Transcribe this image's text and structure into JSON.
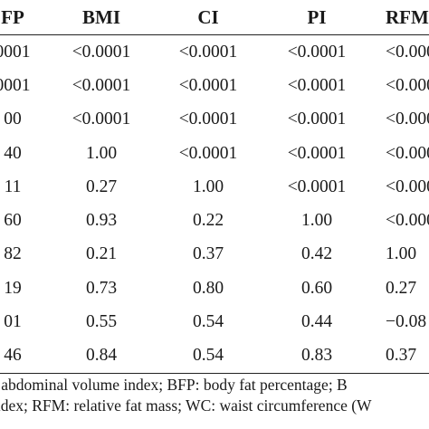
{
  "table": {
    "headers": [
      "FP",
      "BMI",
      "CI",
      "PI",
      "RFM"
    ],
    "rows": [
      [
        "0001",
        "<0.0001",
        "<0.0001",
        "<0.0001",
        "<0.000"
      ],
      [
        "0001",
        "<0.0001",
        "<0.0001",
        "<0.0001",
        "<0.000"
      ],
      "__spacer__"
    ]
  },
  "rows": [
    [
      "0001",
      "<0.0001",
      "<0.0001",
      "<0.0001",
      "<0.000"
    ],
    [
      "0001",
      "<0.0001",
      "<0.0001",
      "<0.0001",
      "<0.000"
    ],
    [
      "00",
      "<0.0001",
      "<0.0001",
      "<0.0001",
      "<0.000"
    ],
    [
      "40",
      "1.00",
      "<0.0001",
      "<0.0001",
      "<0.000"
    ],
    [
      "11",
      "0.27",
      "1.00",
      "<0.0001",
      "<0.000"
    ],
    [
      "60",
      "0.93",
      "0.22",
      "1.00",
      "<0.000"
    ],
    [
      "82",
      "0.21",
      "0.37",
      "0.42",
      "1.00"
    ],
    [
      "19",
      "0.73",
      "0.80",
      "0.60",
      "0.27"
    ],
    [
      "01",
      "0.55",
      "0.54",
      "0.44",
      "−0.08"
    ],
    [
      "46",
      "0.84",
      "0.54",
      "0.83",
      "0.37"
    ]
  ],
  "footnote": {
    "line1": ": abdominal volume index; BFP: body fat percentage; B",
    "line2": "ndex; RFM: relative fat mass; WC: waist circumference (W"
  }
}
